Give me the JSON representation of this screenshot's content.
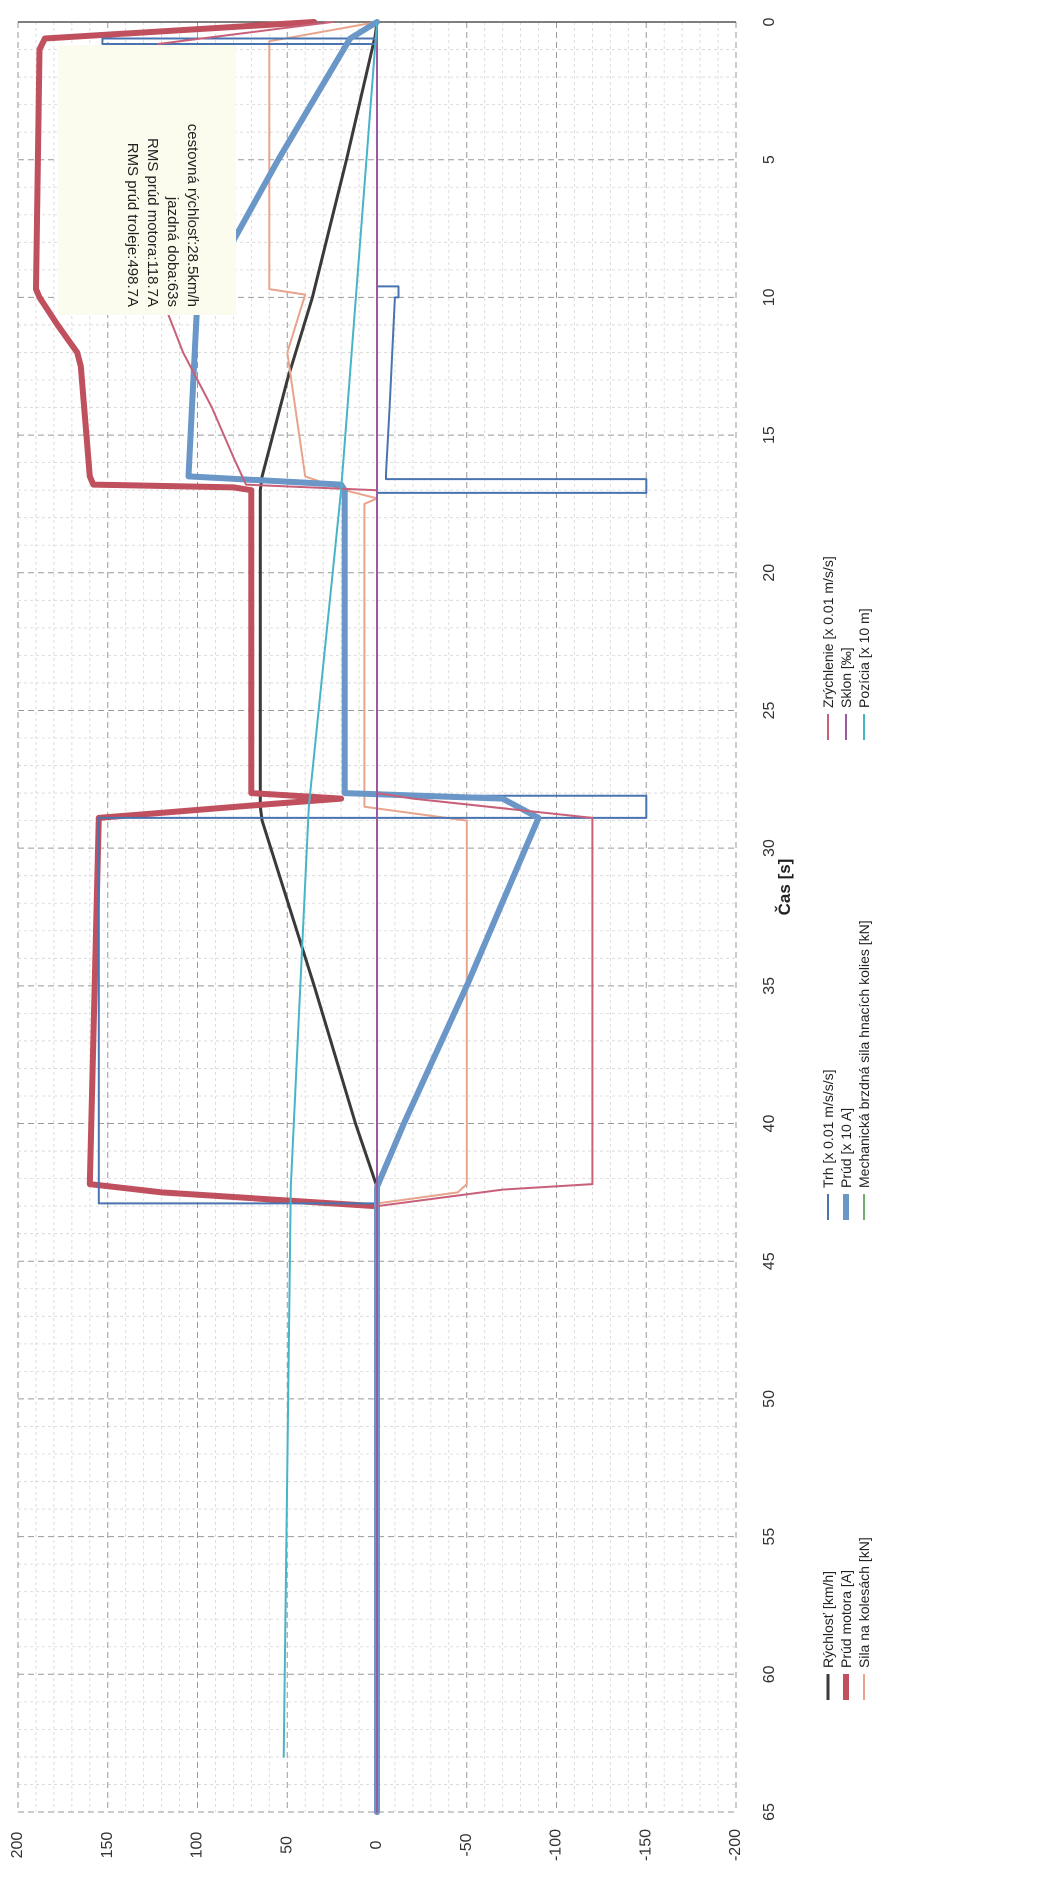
{
  "chart_data": {
    "type": "line",
    "title": "",
    "orientation": "rotated-90-cw",
    "xlabel": "Čas [s]",
    "ylabel": "",
    "xlim": [
      0,
      65
    ],
    "ylim": [
      -200,
      200
    ],
    "x_ticks": [
      0,
      5,
      10,
      15,
      20,
      25,
      30,
      35,
      40,
      45,
      50,
      55,
      60,
      65
    ],
    "y_ticks": [
      -200,
      -150,
      -100,
      -50,
      0,
      50,
      100,
      150,
      200
    ],
    "grid": "on",
    "legend_position": "bottom",
    "info_box": [
      "cestovná rýchlosť:28.5km/h",
      "jazdná doba:63s",
      "RMS prúd motora:118.7A",
      "RMS prúd troleje:498.7A"
    ],
    "series": [
      {
        "name": "Rýchlosť [km/h]",
        "color": "#3a3a3a",
        "width": 3,
        "points": [
          [
            0,
            0
          ],
          [
            0.5,
            1
          ],
          [
            5,
            17
          ],
          [
            10,
            36
          ],
          [
            13,
            50
          ],
          [
            15,
            58
          ],
          [
            16.5,
            64
          ],
          [
            17,
            65
          ],
          [
            28.5,
            65
          ],
          [
            29,
            64
          ],
          [
            35,
            35
          ],
          [
            40,
            12
          ],
          [
            42.3,
            0
          ],
          [
            65,
            0
          ]
        ]
      },
      {
        "name": "Prúd motora [A]",
        "color": "#c0505e",
        "width": 6,
        "points": [
          [
            0,
            35
          ],
          [
            0.6,
            185
          ],
          [
            1,
            188
          ],
          [
            9.7,
            190
          ],
          [
            10,
            188
          ],
          [
            11,
            178
          ],
          [
            12,
            167
          ],
          [
            12.5,
            165
          ],
          [
            16.5,
            160
          ],
          [
            16.8,
            158
          ],
          [
            16.9,
            80
          ],
          [
            17,
            70
          ],
          [
            28,
            70
          ],
          [
            28.2,
            20
          ],
          [
            28.4,
            60
          ],
          [
            28.9,
            155
          ],
          [
            42.2,
            160
          ],
          [
            42.5,
            120
          ],
          [
            43,
            0
          ],
          [
            65,
            0
          ]
        ]
      },
      {
        "name": "Sila na kolesách [kN]",
        "color": "#e8a48c",
        "width": 2,
        "points": [
          [
            0,
            0
          ],
          [
            0.7,
            60
          ],
          [
            9.7,
            60
          ],
          [
            9.9,
            40
          ],
          [
            12,
            50
          ],
          [
            16.5,
            40
          ],
          [
            17,
            18
          ],
          [
            17.3,
            0
          ],
          [
            17.5,
            7
          ],
          [
            28.5,
            7
          ],
          [
            29,
            -50
          ],
          [
            42.2,
            -50
          ],
          [
            42.5,
            -45
          ],
          [
            42.9,
            0
          ],
          [
            65,
            0
          ]
        ]
      },
      {
        "name": "Trh [x 0.01 m/s/s/s]",
        "color": "#4a74b0",
        "width": 2,
        "points": [
          [
            0,
            0
          ],
          [
            0.6,
            0
          ],
          [
            0.6,
            153
          ],
          [
            0.8,
            153
          ],
          [
            0.8,
            0
          ],
          [
            9.6,
            0
          ],
          [
            9.6,
            -12
          ],
          [
            10,
            -12
          ],
          [
            10,
            -10
          ],
          [
            14,
            -7
          ],
          [
            16.4,
            -5
          ],
          [
            16.6,
            -5
          ],
          [
            16.6,
            -150
          ],
          [
            17.1,
            -150
          ],
          [
            17.1,
            0
          ],
          [
            28.1,
            0
          ],
          [
            28.1,
            -150
          ],
          [
            28.9,
            -150
          ],
          [
            28.9,
            155
          ],
          [
            42.9,
            155
          ],
          [
            42.9,
            0
          ],
          [
            65,
            0
          ]
        ]
      },
      {
        "name": "Prúd [x 10 A]",
        "color": "#6a96c8",
        "width": 6,
        "points": [
          [
            0,
            0
          ],
          [
            0.6,
            15
          ],
          [
            5,
            55
          ],
          [
            9.7,
            95
          ],
          [
            10,
            100
          ],
          [
            16.5,
            105
          ],
          [
            16.8,
            20
          ],
          [
            17,
            18
          ],
          [
            28,
            18
          ],
          [
            28.2,
            -70
          ],
          [
            28.9,
            -90
          ],
          [
            35,
            -50
          ],
          [
            40,
            -15
          ],
          [
            42.3,
            0
          ],
          [
            65,
            0
          ]
        ]
      },
      {
        "name": "Mechanická brzdná sila hnacích kolies [kN]",
        "color": "#70b06a",
        "width": 2,
        "points": [
          [
            0,
            0
          ],
          [
            63,
            0
          ]
        ]
      },
      {
        "name": "Zrýchlenie [x 0.01 m/s/s]",
        "color": "#c8607a",
        "width": 2,
        "points": [
          [
            0,
            25
          ],
          [
            0.8,
            122
          ],
          [
            9.6,
            122
          ],
          [
            10,
            120
          ],
          [
            12,
            108
          ],
          [
            14,
            92
          ],
          [
            15.8,
            80
          ],
          [
            16.8,
            73
          ],
          [
            17,
            0
          ],
          [
            28,
            0
          ],
          [
            28.2,
            -20
          ],
          [
            28.9,
            -120
          ],
          [
            42.2,
            -120
          ],
          [
            42.4,
            -70
          ],
          [
            43,
            0
          ],
          [
            65,
            0
          ]
        ]
      },
      {
        "name": "Sklon [‰]",
        "color": "#9a5aa0",
        "width": 2,
        "points": [
          [
            0,
            0
          ],
          [
            65,
            0
          ]
        ]
      },
      {
        "name": "Pozícia [x 10 m]",
        "color": "#48b4c8",
        "width": 2,
        "points": [
          [
            0,
            0
          ],
          [
            17,
            20
          ],
          [
            28.5,
            38
          ],
          [
            42.3,
            48
          ],
          [
            63,
            52
          ]
        ]
      }
    ]
  }
}
